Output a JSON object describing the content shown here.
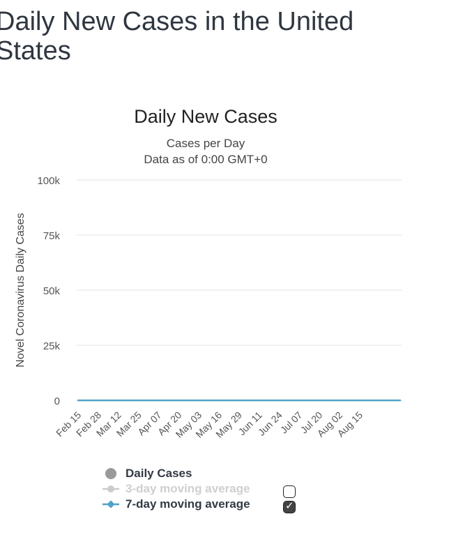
{
  "page": {
    "title": "Daily New Cases in the United States"
  },
  "chart_data": {
    "type": "bar",
    "title": "Daily New Cases",
    "subtitle": "Cases per Day",
    "subtitle2": "Data as of 0:00 GMT+0",
    "ylabel": "Novel Coronavirus Daily Cases",
    "xlabel": "",
    "ylim": [
      0,
      100000
    ],
    "yticks": [
      0,
      25000,
      50000,
      75000,
      100000
    ],
    "ytick_labels": [
      "0",
      "25k",
      "50k",
      "75k",
      "100k"
    ],
    "xtick_labels": [
      "Feb 15",
      "Feb 28",
      "Mar 12",
      "Mar 25",
      "Apr 07",
      "Apr 20",
      "May 03",
      "May 16",
      "May 29",
      "Jun 11",
      "Jun 24",
      "Jul 07",
      "Jul 20",
      "Aug 02",
      "Aug 15"
    ],
    "xtick_index_step": 13,
    "grid": true,
    "legend_position": "bottom",
    "colors": {
      "bars": "#9a9a9a",
      "avg7": "#4fa3c7",
      "avg3": "#cccccc"
    },
    "series": [
      {
        "name": "Daily Cases",
        "values": [
          0,
          0,
          0,
          0,
          0,
          0,
          0,
          0,
          0,
          0,
          0,
          0,
          0,
          0,
          0,
          0,
          0,
          0,
          0,
          0,
          0,
          0,
          0,
          0,
          0,
          0,
          0,
          0,
          0,
          0,
          0,
          0,
          0,
          0,
          0,
          0,
          0,
          0,
          0,
          0,
          0,
          0,
          0,
          0,
          0,
          0,
          0,
          0,
          0,
          0,
          0,
          0,
          0,
          0,
          0,
          0,
          0,
          0,
          0,
          0,
          0,
          0,
          0,
          0,
          0,
          0,
          0,
          0,
          0,
          0,
          0,
          0,
          0,
          0,
          0,
          0,
          0,
          0,
          0,
          0,
          0,
          0,
          0,
          0,
          0,
          0,
          0,
          0,
          0,
          0,
          0,
          0,
          0,
          0,
          0,
          0,
          0,
          0,
          0,
          0,
          0,
          0,
          0,
          0,
          0,
          0,
          0,
          0,
          0,
          0,
          0,
          0,
          0,
          0,
          0,
          0,
          0,
          0,
          0,
          0,
          0,
          0,
          0,
          0,
          0,
          0,
          0,
          0,
          0,
          0,
          0,
          0,
          0,
          0,
          0,
          0,
          0,
          0,
          0,
          0,
          0,
          0,
          0,
          0,
          0,
          0,
          0,
          0,
          0,
          0,
          0,
          0,
          0,
          0,
          0,
          0,
          0,
          0,
          0,
          0,
          0,
          0,
          0,
          0,
          0,
          0,
          0,
          0,
          0,
          0,
          0,
          0,
          0,
          0,
          0,
          0,
          0,
          0,
          0,
          0,
          0,
          0,
          0,
          0,
          0,
          0,
          0,
          0,
          0,
          0,
          0,
          0,
          0,
          0,
          0,
          0,
          0,
          0,
          0,
          0,
          0,
          0,
          0,
          0,
          0,
          0,
          0,
          0,
          0,
          0
        ]
      },
      {
        "name": "7-day moving average",
        "values": [
          0,
          0,
          0,
          0,
          0,
          0,
          0,
          0,
          0,
          0,
          0,
          0,
          0,
          0,
          0,
          0,
          0,
          0,
          0,
          0,
          0,
          0,
          0,
          0,
          0,
          0,
          0,
          0,
          0,
          0,
          0,
          0,
          0,
          0,
          0,
          0,
          0,
          0,
          0,
          0,
          0,
          0,
          0,
          0,
          0,
          0,
          0,
          0,
          0,
          0,
          0,
          0,
          0,
          0,
          0,
          0,
          0,
          0,
          0,
          0,
          0,
          0,
          0,
          0,
          0,
          0,
          0,
          0,
          0,
          0,
          0,
          0,
          0,
          0,
          0,
          0,
          0,
          0,
          0,
          0,
          0,
          0,
          0,
          0,
          0,
          0,
          0,
          0,
          0,
          0,
          0,
          0,
          0,
          0,
          0,
          0,
          0,
          0,
          0,
          0,
          0,
          0,
          0,
          0,
          0,
          0,
          0,
          0,
          0,
          0,
          0,
          0,
          0,
          0,
          0,
          0,
          0,
          0,
          0,
          0,
          0,
          0,
          0,
          0,
          0,
          0,
          0,
          0,
          0,
          0,
          0,
          0,
          0,
          0,
          0,
          0,
          0,
          0,
          0,
          0,
          0,
          0,
          0,
          0,
          0,
          0,
          0,
          0,
          0,
          0,
          0,
          0,
          0,
          0,
          0,
          0,
          0,
          0,
          0,
          0,
          0,
          0,
          0,
          0,
          0,
          0,
          0,
          0,
          0,
          0,
          0,
          0,
          0,
          0,
          0,
          0,
          0,
          0,
          0,
          0,
          0,
          0,
          0,
          0,
          0,
          0,
          0,
          0,
          0,
          0,
          0,
          0,
          0,
          0,
          0,
          0,
          0,
          0,
          0,
          0,
          0,
          0,
          0,
          0,
          0,
          0,
          0,
          0,
          0,
          0
        ]
      }
    ]
  },
  "legend": {
    "daily_label": "Daily Cases",
    "avg3_label": "3-day moving average",
    "avg7_label": "7-day moving average",
    "avg3_checked": false,
    "avg7_checked": true
  }
}
